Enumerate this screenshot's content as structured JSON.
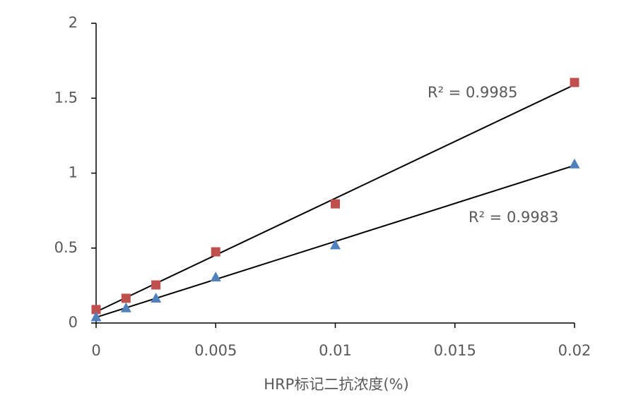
{
  "chart_data": {
    "type": "scatter",
    "x_label": "HRP标记二抗浓度(%)",
    "series": [
      {
        "color": "#c0504d",
        "marker": "square",
        "x": [
          0,
          0.00125,
          0.0025,
          0.005,
          0.01,
          0.02
        ],
        "values": [
          0.09,
          0.165,
          0.254,
          0.475,
          0.795,
          1.605
        ]
      },
      {
        "color": "#4f81bd",
        "marker": "triangle",
        "x": [
          0,
          0.00125,
          0.0025,
          0.005,
          0.01,
          0.02
        ],
        "values": [
          0.04,
          0.1,
          0.165,
          0.306,
          0.52,
          1.06
        ]
      }
    ],
    "trendline": true,
    "annotations": [
      "R² = 0.9985",
      "R² = 0.9983"
    ],
    "xlim": [
      0,
      0.02
    ],
    "xticks": [
      0,
      0.005,
      0.01,
      0.015,
      0.02
    ],
    "ylim": [
      0,
      2
    ],
    "yticks": [
      0,
      0.5,
      1,
      1.5,
      2
    ],
    "grid": false
  }
}
